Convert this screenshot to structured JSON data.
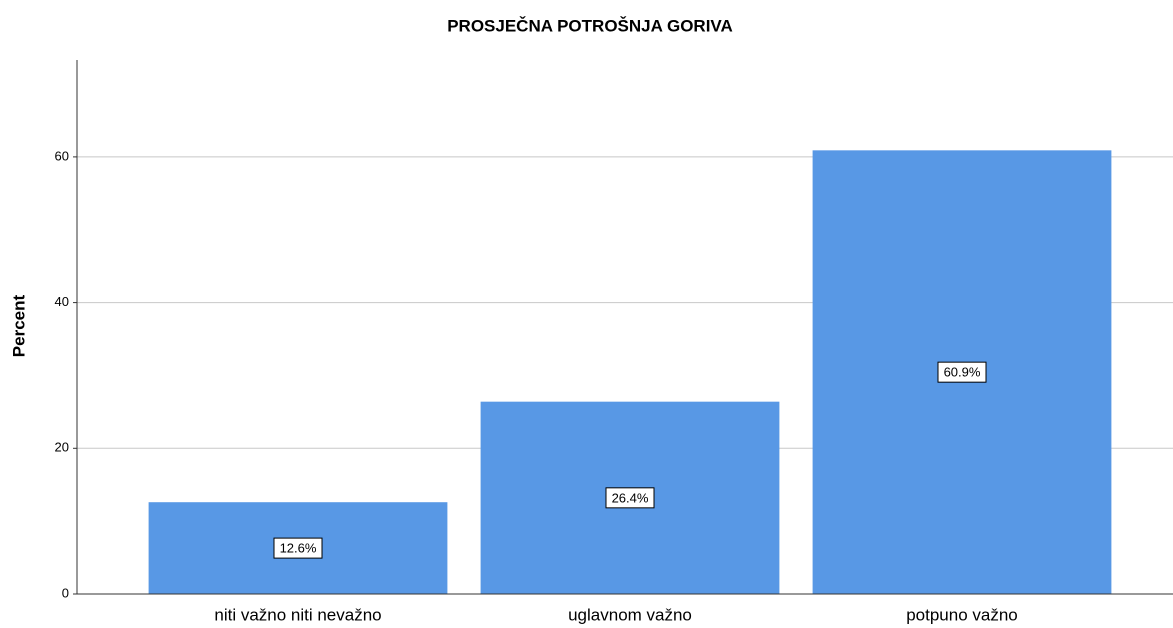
{
  "chart_data": {
    "type": "bar",
    "title": "PROSJEČNA POTROŠNJA GORIVA",
    "y_label": "Percent",
    "categories": [
      "niti važno niti nevažno",
      "uglavnom važno",
      "potpuno važno"
    ],
    "values": [
      12.6,
      26.4,
      60.9
    ],
    "value_labels": [
      "12.6%",
      "26.4%",
      "60.9%"
    ],
    "color": "#5898e5",
    "ylim": [
      0,
      73.3
    ],
    "yticks": [
      0,
      20,
      40,
      60
    ],
    "grid": true
  }
}
